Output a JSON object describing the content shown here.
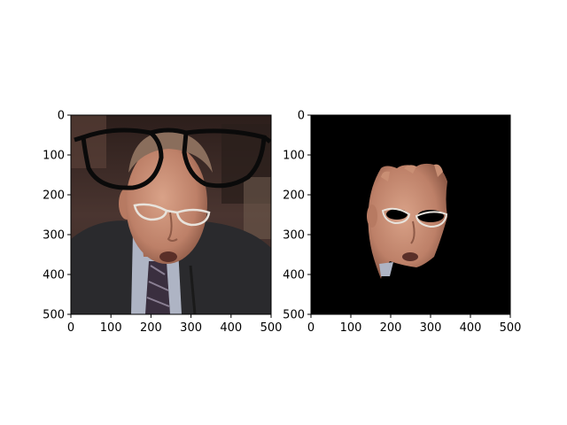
{
  "chart_data": [
    {
      "type": "image",
      "title": "",
      "xlabel": "",
      "ylabel": "",
      "xlim": [
        0,
        500
      ],
      "ylim": [
        500,
        0
      ],
      "xticks": [
        0,
        100,
        200,
        300,
        400,
        500
      ],
      "yticks": [
        0,
        100,
        200,
        300,
        400,
        500
      ],
      "content": "face-with-sunglasses-overlay"
    },
    {
      "type": "image",
      "title": "",
      "xlabel": "",
      "ylabel": "",
      "xlim": [
        0,
        500
      ],
      "ylim": [
        500,
        0
      ],
      "xticks": [
        0,
        100,
        200,
        300,
        400,
        500
      ],
      "yticks": [
        0,
        100,
        200,
        300,
        400,
        500
      ],
      "content": "segmented-face-mask",
      "background": "#000000"
    }
  ],
  "colors": {
    "skin": "#c98f74",
    "skin_shadow": "#9c6552",
    "hair": "#8a6e5c",
    "suit": "#2a2a2d",
    "shirt": "#aeb4c4",
    "tie": "#3a2f3f",
    "glasses_frame": "#0a0a0a",
    "photo_bg": "#3d2b26"
  }
}
